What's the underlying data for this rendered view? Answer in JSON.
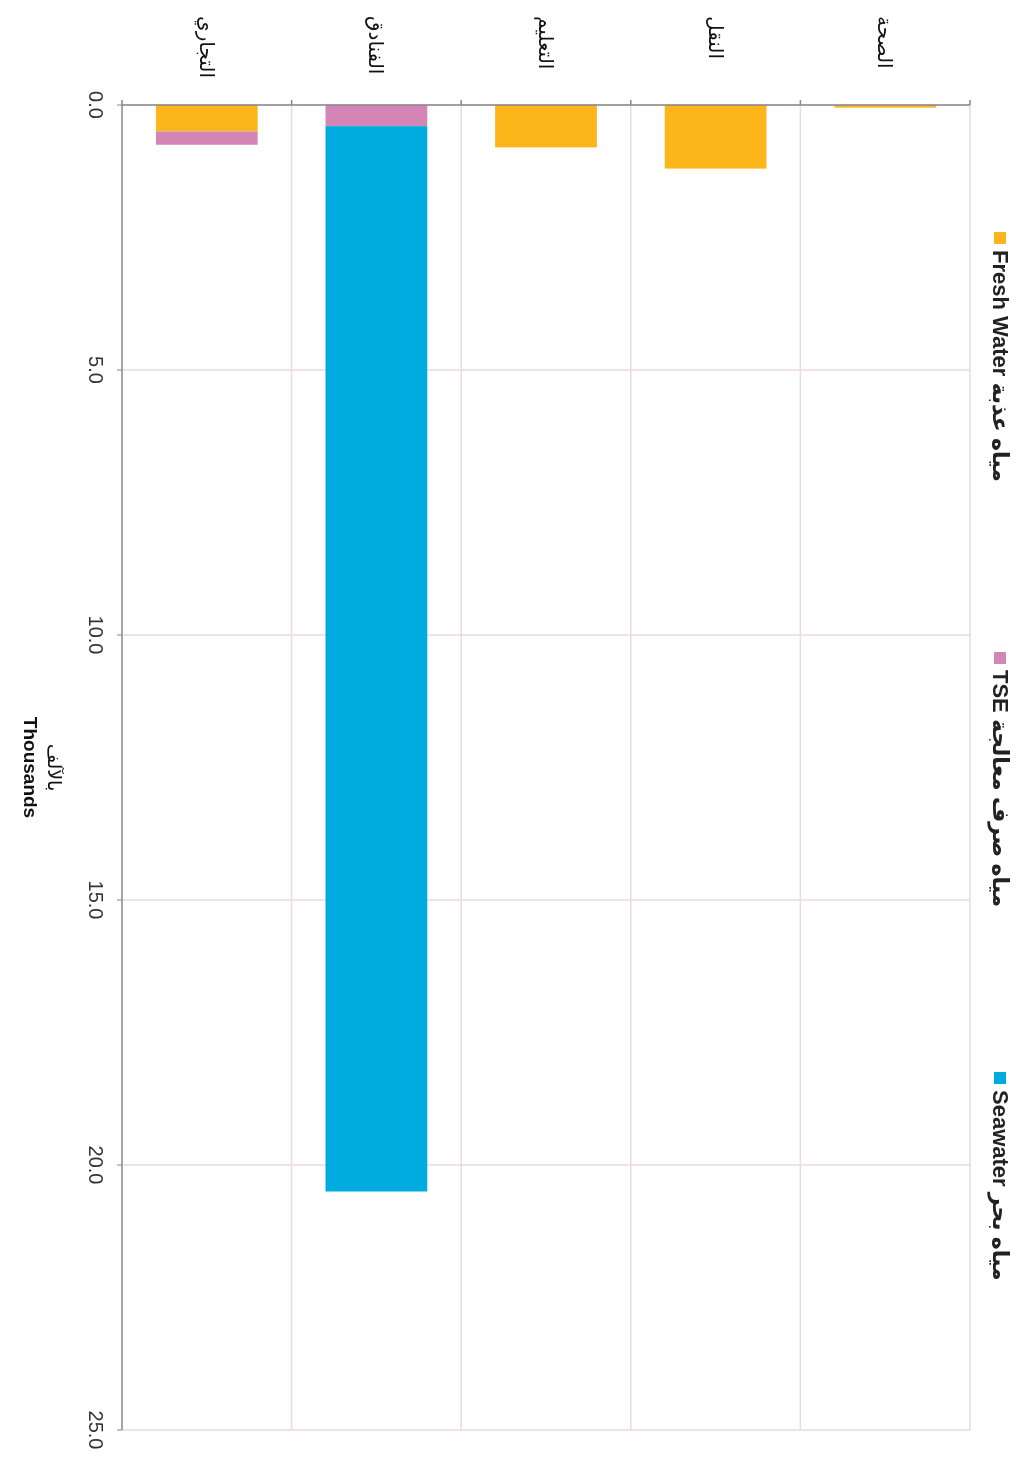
{
  "chart_data": {
    "type": "bar",
    "stacked": true,
    "categories": [
      "التجاري",
      "الفنادق",
      "التعليم",
      "النقل",
      "الصحة"
    ],
    "series": [
      {
        "name": "Fresh Water مياه عذبة",
        "color": "#fdb51c",
        "values": [
          0.5,
          0,
          0.8,
          1.2,
          0.05
        ]
      },
      {
        "name": "TSE مياه صرف معالجة",
        "color": "#d385b5",
        "values": [
          0.25,
          0.4,
          0,
          0,
          0
        ]
      },
      {
        "name": "Seawater مياه بحر",
        "color": "#00abe0",
        "values": [
          0,
          20.1,
          0,
          0,
          0
        ]
      }
    ],
    "ylim": [
      25,
      0
    ],
    "yticks": [
      {
        "value": 0,
        "label": "0.0"
      },
      {
        "value": 5,
        "label": "5.0"
      },
      {
        "value": 10,
        "label": "10.0"
      },
      {
        "value": 15,
        "label": "15.0"
      },
      {
        "value": 20,
        "label": "20.0"
      },
      {
        "value": 25,
        "label": "25.0"
      }
    ],
    "ylabel": "بالآلف\nThousands",
    "grid": true,
    "legend": "right"
  }
}
